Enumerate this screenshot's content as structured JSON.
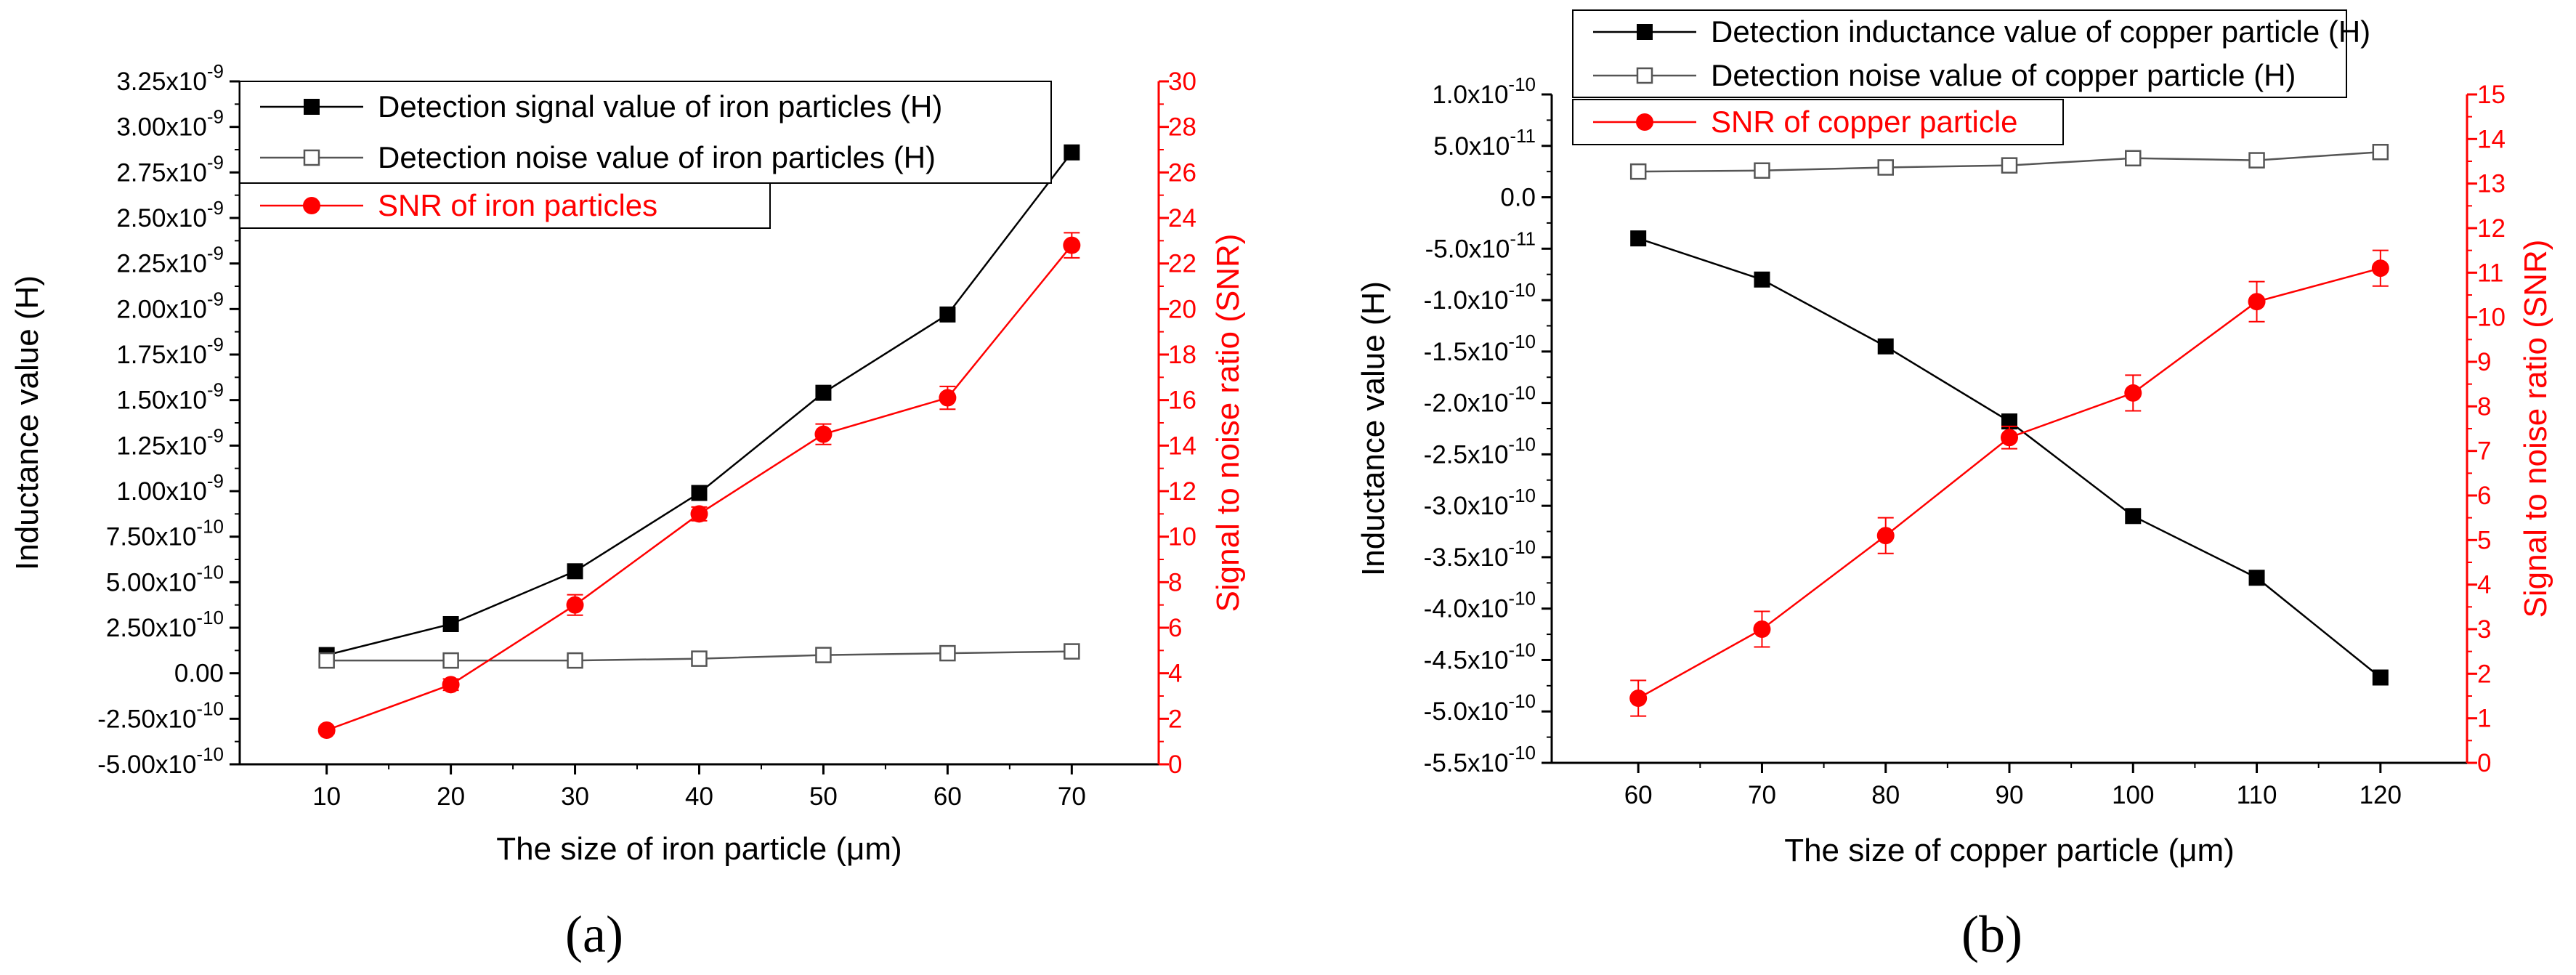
{
  "chart_data": [
    {
      "panel": "(a)",
      "type": "line",
      "x": [
        10,
        20,
        30,
        40,
        50,
        60,
        70
      ],
      "xlim": [
        3,
        77
      ],
      "xticks": [
        10,
        20,
        30,
        40,
        50,
        60,
        70
      ],
      "xlabel": "The size of iron particle (μm)",
      "ylabel_left": "Inductance value (H)",
      "ylabel_right": "Signal to noise ratio (SNR)",
      "ylim_left": [
        -5e-10,
        3.25e-09
      ],
      "ylim_right": [
        0,
        30
      ],
      "yticks_left": [
        {
          "value": -5e-10,
          "mant": "-5.00x10",
          "exp": "-10"
        },
        {
          "value": -2.5e-10,
          "mant": "-2.50x10",
          "exp": "-10"
        },
        {
          "value": 0,
          "mant": "0.00",
          "exp": ""
        },
        {
          "value": 2.5e-10,
          "mant": "2.50x10",
          "exp": "-10"
        },
        {
          "value": 5e-10,
          "mant": "5.00x10",
          "exp": "-10"
        },
        {
          "value": 7.5e-10,
          "mant": "7.50x10",
          "exp": "-10"
        },
        {
          "value": 1e-09,
          "mant": "1.00x10",
          "exp": "-9"
        },
        {
          "value": 1.25e-09,
          "mant": "1.25x10",
          "exp": "-9"
        },
        {
          "value": 1.5e-09,
          "mant": "1.50x10",
          "exp": "-9"
        },
        {
          "value": 1.75e-09,
          "mant": "1.75x10",
          "exp": "-9"
        },
        {
          "value": 2e-09,
          "mant": "2.00x10",
          "exp": "-9"
        },
        {
          "value": 2.25e-09,
          "mant": "2.25x10",
          "exp": "-9"
        },
        {
          "value": 2.5e-09,
          "mant": "2.50x10",
          "exp": "-9"
        },
        {
          "value": 2.75e-09,
          "mant": "2.75x10",
          "exp": "-9"
        },
        {
          "value": 3e-09,
          "mant": "3.00x10",
          "exp": "-9"
        },
        {
          "value": 3.25e-09,
          "mant": "3.25x10",
          "exp": "-9"
        }
      ],
      "yticks_right": [
        0,
        2,
        4,
        6,
        8,
        10,
        12,
        14,
        16,
        18,
        20,
        22,
        24,
        26,
        28,
        30
      ],
      "series": [
        {
          "name": "Detection signal value of iron particles (H)",
          "axis": "left",
          "color": "#000000",
          "marker": "filled-square",
          "values": [
            1e-10,
            2.7e-10,
            5.6e-10,
            9.9e-10,
            1.54e-09,
            1.97e-09,
            2.86e-09
          ]
        },
        {
          "name": "Detection noise value of iron particles  (H)",
          "axis": "left",
          "color": "#555555",
          "marker": "open-square",
          "values": [
            7e-11,
            7e-11,
            7e-11,
            8e-11,
            1e-10,
            1.1e-10,
            1.2e-10
          ]
        },
        {
          "name": "SNR of iron particles",
          "axis": "right",
          "color": "#ff0000",
          "marker": "filled-circle",
          "values": [
            1.5,
            3.5,
            7.0,
            11.0,
            14.5,
            16.1,
            22.8
          ],
          "errors": [
            0.15,
            0.25,
            0.45,
            0.3,
            0.45,
            0.5,
            0.55
          ]
        }
      ],
      "legend_placement": "top-left"
    },
    {
      "panel": "(b)",
      "type": "line",
      "x": [
        60,
        70,
        80,
        90,
        100,
        110,
        120
      ],
      "xlim": [
        53,
        127
      ],
      "xticks": [
        60,
        70,
        80,
        90,
        100,
        110,
        120
      ],
      "xlabel": "The size of copper particle (μm)",
      "ylabel_left": "Inductance value (H)",
      "ylabel_right": "Signal to noise ratio (SNR)",
      "ylim_left": [
        -5.5e-10,
        1e-10
      ],
      "ylim_right": [
        0,
        15
      ],
      "yticks_left": [
        {
          "value": -5.5e-10,
          "mant": "-5.5x10",
          "exp": "-10"
        },
        {
          "value": -5e-10,
          "mant": "-5.0x10",
          "exp": "-10"
        },
        {
          "value": -4.5e-10,
          "mant": "-4.5x10",
          "exp": "-10"
        },
        {
          "value": -4e-10,
          "mant": "-4.0x10",
          "exp": "-10"
        },
        {
          "value": -3.5e-10,
          "mant": "-3.5x10",
          "exp": "-10"
        },
        {
          "value": -3e-10,
          "mant": "-3.0x10",
          "exp": "-10"
        },
        {
          "value": -2.5e-10,
          "mant": "-2.5x10",
          "exp": "-10"
        },
        {
          "value": -2e-10,
          "mant": "-2.0x10",
          "exp": "-10"
        },
        {
          "value": -1.5e-10,
          "mant": "-1.5x10",
          "exp": "-10"
        },
        {
          "value": -1e-10,
          "mant": "-1.0x10",
          "exp": "-10"
        },
        {
          "value": -5e-11,
          "mant": "-5.0x10",
          "exp": "-11"
        },
        {
          "value": 0,
          "mant": "0.0",
          "exp": ""
        },
        {
          "value": 5e-11,
          "mant": "5.0x10",
          "exp": "-11"
        },
        {
          "value": 1e-10,
          "mant": "1.0x10",
          "exp": "-10"
        }
      ],
      "yticks_right": [
        0,
        1,
        2,
        3,
        4,
        5,
        6,
        7,
        8,
        9,
        10,
        11,
        12,
        13,
        14,
        15
      ],
      "series": [
        {
          "name": "Detection inductance value of copper particle (H)",
          "axis": "left",
          "color": "#000000",
          "marker": "filled-square",
          "values": [
            -4e-11,
            -8e-11,
            -1.45e-10,
            -2.18e-10,
            -3.1e-10,
            -3.7e-10,
            -4.67e-10
          ]
        },
        {
          "name": "Detection noise value of copper particle (H)",
          "axis": "left",
          "color": "#555555",
          "marker": "open-square",
          "values": [
            2.5e-11,
            2.6e-11,
            2.9e-11,
            3.1e-11,
            3.8e-11,
            3.6e-11,
            4.4e-11
          ]
        },
        {
          "name": "SNR of copper particle",
          "axis": "right",
          "color": "#ff0000",
          "marker": "filled-circle",
          "values": [
            1.45,
            3.0,
            5.1,
            7.3,
            8.3,
            10.35,
            11.1
          ],
          "errors": [
            0.4,
            0.4,
            0.4,
            0.25,
            0.4,
            0.45,
            0.4
          ]
        }
      ],
      "legend_placement": "top-left"
    }
  ]
}
